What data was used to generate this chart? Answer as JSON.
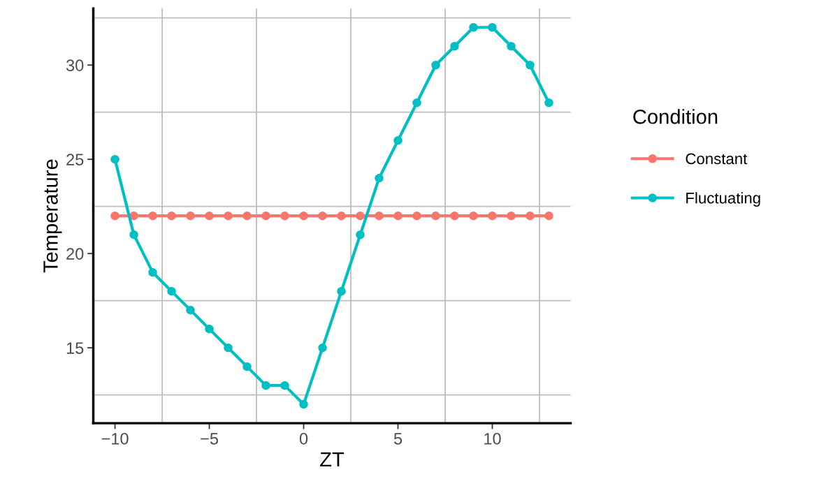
{
  "chart_data": {
    "type": "line",
    "xlabel": "ZT",
    "ylabel": "Temperature",
    "legend_title": "Condition",
    "legend": "right",
    "marker": "circle",
    "line_style": "solid",
    "grid": true,
    "x": [
      -10,
      -9,
      -8,
      -7,
      -6,
      -5,
      -4,
      -3,
      -2,
      -1,
      0,
      1,
      2,
      3,
      4,
      5,
      6,
      7,
      8,
      9,
      10,
      11,
      12,
      13
    ],
    "series": [
      {
        "name": "Constant",
        "color": "#f8766d",
        "values": [
          22,
          22,
          22,
          22,
          22,
          22,
          22,
          22,
          22,
          22,
          22,
          22,
          22,
          22,
          22,
          22,
          22,
          22,
          22,
          22,
          22,
          22,
          22,
          22
        ]
      },
      {
        "name": "Fluctuating",
        "color": "#00bfc4",
        "values": [
          25,
          21,
          19,
          18,
          17,
          16,
          15,
          14,
          13,
          13,
          12,
          15,
          18,
          21,
          24,
          26,
          28,
          30,
          31,
          32,
          32,
          31,
          30,
          28
        ]
      }
    ],
    "xlim": [
      -11.15,
      14.15
    ],
    "ylim": [
      11,
      33
    ],
    "xticks": [
      -10,
      {
        "value": -7.5,
        "label": null
      },
      -5,
      {
        "value": -2.5,
        "label": null
      },
      0,
      {
        "value": 2.5,
        "label": null
      },
      5,
      {
        "value": 7.5,
        "label": null
      },
      10,
      {
        "value": 12.5,
        "label": null
      }
    ],
    "yticks": [
      {
        "value": 12.5,
        "label": null
      },
      15,
      {
        "value": 17.5,
        "label": null
      },
      20,
      {
        "value": 22.5,
        "label": null
      },
      25,
      {
        "value": 27.5,
        "label": null
      },
      30,
      {
        "value": 32.5,
        "label": null
      }
    ]
  }
}
